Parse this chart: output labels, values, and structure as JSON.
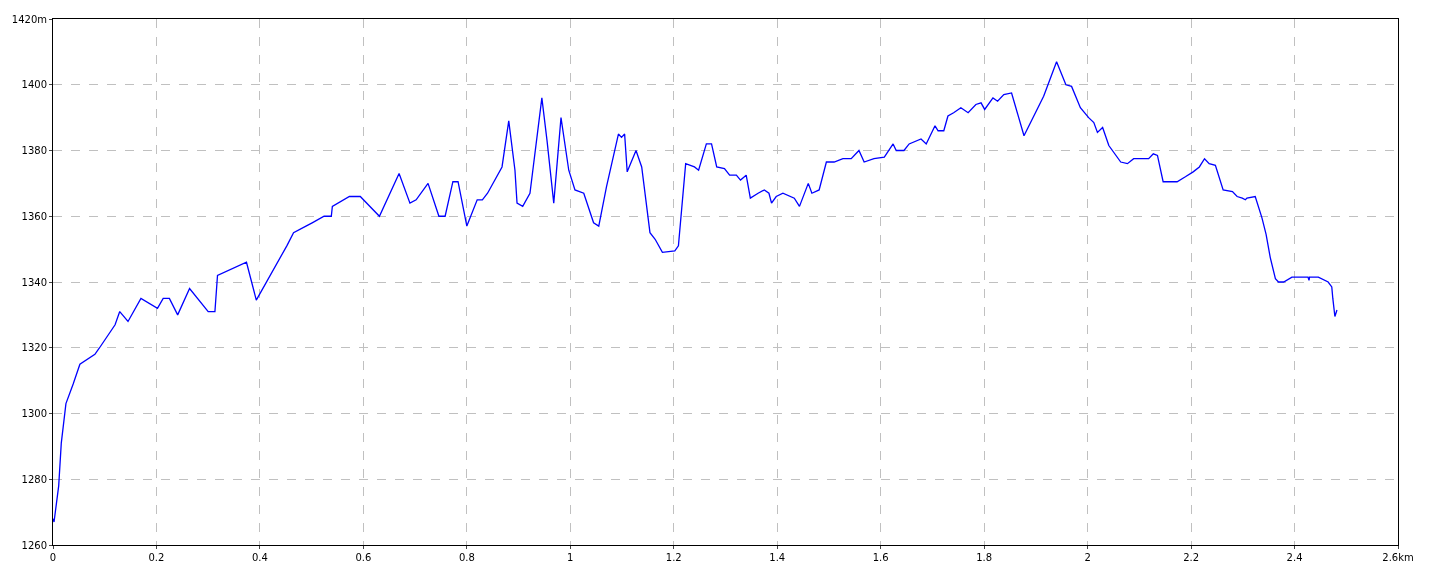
{
  "chart_data": {
    "type": "line",
    "x": [
      0,
      0.002,
      0.011,
      0.016,
      0.025,
      0.039,
      0.052,
      0.081,
      0.09,
      0.12,
      0.129,
      0.145,
      0.17,
      0.202,
      0.213,
      0.225,
      0.241,
      0.264,
      0.3,
      0.313,
      0.318,
      0.374,
      0.393,
      0.452,
      0.465,
      0.489,
      0.501,
      0.524,
      0.538,
      0.54,
      0.573,
      0.594,
      0.631,
      0.669,
      0.69,
      0.702,
      0.725,
      0.746,
      0.758,
      0.773,
      0.783,
      0.8,
      0.82,
      0.83,
      0.84,
      0.868,
      0.881,
      0.893,
      0.897,
      0.908,
      0.922,
      0.945,
      0.955,
      0.968,
      0.982,
      0.997,
      1.009,
      1.026,
      1.045,
      1.055,
      1.07,
      1.093,
      1.099,
      1.105,
      1.11,
      1.127,
      1.138,
      1.154,
      1.164,
      1.178,
      1.202,
      1.209,
      1.223,
      1.24,
      1.248,
      1.263,
      1.273,
      1.283,
      1.298,
      1.308,
      1.321,
      1.329,
      1.34,
      1.348,
      1.363,
      1.375,
      1.384,
      1.389,
      1.398,
      1.411,
      1.433,
      1.443,
      1.46,
      1.467,
      1.481,
      1.495,
      1.51,
      1.527,
      1.543,
      1.558,
      1.568,
      1.587,
      1.607,
      1.624,
      1.63,
      1.645,
      1.655,
      1.678,
      1.688,
      1.705,
      1.711,
      1.722,
      1.73,
      1.741,
      1.755,
      1.769,
      1.784,
      1.794,
      1.801,
      1.817,
      1.826,
      1.838,
      1.853,
      1.877,
      1.915,
      1.94,
      1.958,
      1.969,
      1.986,
      2.002,
      2.012,
      2.019,
      2.029,
      2.041,
      2.064,
      2.077,
      2.089,
      2.118,
      2.127,
      2.135,
      2.146,
      2.166,
      2.173,
      2.189,
      2.204,
      2.216,
      2.226,
      2.235,
      2.247,
      2.262,
      2.28,
      2.289,
      2.299,
      2.305,
      2.308,
      2.324,
      2.337,
      2.345,
      2.353,
      2.363,
      2.369,
      2.379,
      2.395,
      2.426,
      2.428,
      2.429,
      2.446,
      2.465,
      2.472,
      2.474,
      2.478,
      2.482
    ],
    "series": [
      {
        "color": "#0000ff",
        "values": [
          1268,
          1267,
          1278,
          1291,
          1303,
          1309,
          1315,
          1318,
          1320,
          1327,
          1331,
          1328,
          1335,
          1332,
          1335,
          1335,
          1330,
          1338,
          1331,
          1331,
          1342,
          1346,
          1334.5,
          1351,
          1355,
          1357,
          1358,
          1360,
          1360,
          1363,
          1366,
          1366,
          1360,
          1373,
          1364,
          1365,
          1370,
          1360,
          1360,
          1370.5,
          1370.5,
          1357,
          1365,
          1365,
          1367,
          1375,
          1389,
          1374,
          1364,
          1363,
          1367,
          1396,
          1383,
          1364,
          1390,
          1374,
          1368,
          1367,
          1358,
          1357,
          1369,
          1385,
          1384,
          1385,
          1373.5,
          1380,
          1375,
          1355,
          1353,
          1349,
          1349.5,
          1351,
          1376,
          1375,
          1374,
          1382,
          1382,
          1375,
          1374.5,
          1372.5,
          1372.5,
          1371,
          1372.5,
          1365.5,
          1367,
          1368,
          1367,
          1364,
          1366,
          1367,
          1365.5,
          1363,
          1370,
          1367,
          1368,
          1376.5,
          1376.5,
          1377.5,
          1377.5,
          1380,
          1376.5,
          1377.5,
          1378,
          1382,
          1380,
          1380,
          1382,
          1383.5,
          1382,
          1387.5,
          1386,
          1386,
          1390.5,
          1391.5,
          1393,
          1391.5,
          1394,
          1394.5,
          1392.5,
          1396,
          1395,
          1397,
          1397.5,
          1384.5,
          1396.5,
          1407,
          1400,
          1399.5,
          1393,
          1390,
          1388.5,
          1385.5,
          1387,
          1381.5,
          1376.5,
          1376,
          1377.5,
          1377.5,
          1379,
          1378.5,
          1370.5,
          1370.5,
          1370.5,
          1372,
          1373.5,
          1375,
          1377.5,
          1376,
          1375.5,
          1368,
          1367.5,
          1366,
          1365.5,
          1365,
          1365.5,
          1366,
          1359.5,
          1354.5,
          1347.5,
          1341,
          1340,
          1340,
          1341.5,
          1341.5,
          1340.5,
          1341.5,
          1341.5,
          1340,
          1338.5,
          1335,
          1329.5,
          1331.5
        ]
      }
    ],
    "xlim": [
      0,
      2.6
    ],
    "xticks": [
      0,
      0.2,
      0.4,
      0.6,
      0.8,
      1,
      1.2,
      1.4,
      1.6,
      1.8,
      2,
      2.2,
      2.4,
      {
        "value": 2.6,
        "label": "2.6km"
      }
    ],
    "ylim": [
      1260,
      1420
    ],
    "yticks": [
      1260,
      1280,
      1300,
      1320,
      1340,
      1360,
      1380,
      1400,
      {
        "value": 1420,
        "label": "1420m"
      }
    ],
    "grid": true,
    "legend": false,
    "marker": "none",
    "line_style": "solid"
  }
}
